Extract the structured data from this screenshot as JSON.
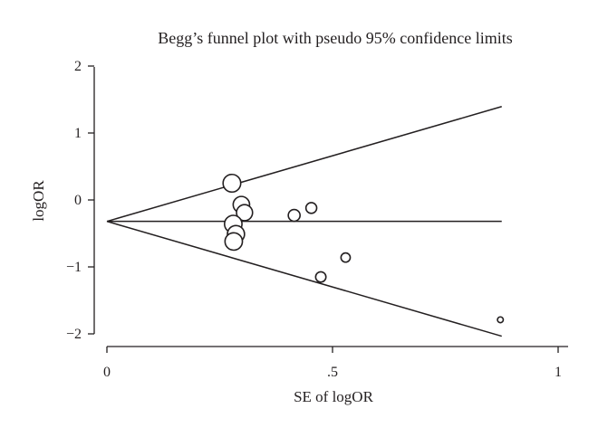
{
  "chart_data": {
    "type": "scatter",
    "title": "Begg’s funnel plot with pseudo 95% confidence limits",
    "xlabel": "SE of logOR",
    "ylabel": "logOR",
    "xlim": [
      0,
      1
    ],
    "ylim": [
      -2,
      2
    ],
    "x_tick_labels": [
      "0",
      ".5",
      "1"
    ],
    "y_tick_labels": [
      "2",
      "1",
      "0",
      "−1",
      "−2"
    ],
    "pooled_logOR": -0.32,
    "limit_lines_end_x": 0.875,
    "series": [
      {
        "points": [
          {
            "se": 0.277,
            "logOR": 0.25
          },
          {
            "se": 0.298,
            "logOR": -0.07
          },
          {
            "se": 0.305,
            "logOR": -0.19
          },
          {
            "se": 0.28,
            "logOR": -0.36
          },
          {
            "se": 0.286,
            "logOR": -0.51
          },
          {
            "se": 0.281,
            "logOR": -0.62
          },
          {
            "se": 0.415,
            "logOR": -0.23
          },
          {
            "se": 0.453,
            "logOR": -0.12
          },
          {
            "se": 0.474,
            "logOR": -1.15
          },
          {
            "se": 0.529,
            "logOR": -0.86
          },
          {
            "se": 0.872,
            "logOR": -1.79
          }
        ]
      }
    ],
    "colors": {
      "ink": "#231f20",
      "background": "#ffffff"
    }
  }
}
